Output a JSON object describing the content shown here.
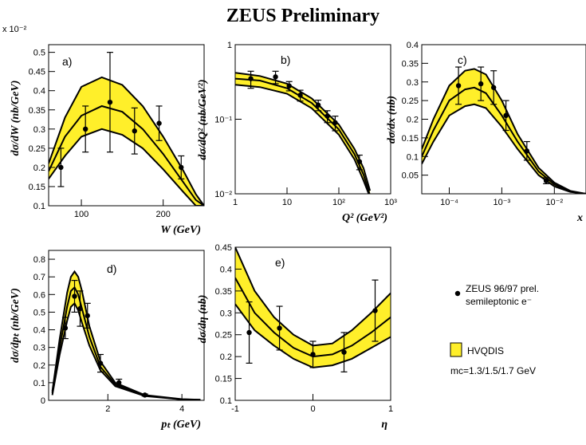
{
  "title": "ZEUS Preliminary",
  "legend": {
    "data_label_1": "ZEUS 96/97 prel.",
    "data_label_2": "semileptonic e⁻",
    "band_label": "HVQDIS",
    "mass_label": "mᴄ=1.3/1.5/1.7 GeV"
  },
  "colors": {
    "band": "#ffef2a",
    "line": "#000000"
  },
  "chart_data": [
    {
      "id": "a",
      "panel_label": "a)",
      "type": "line",
      "xlabel": "W (GeV)",
      "ylabel": "dσ/dW (nb/GeV)",
      "y_exponent_label": "x 10⁻²",
      "xlim": [
        60,
        250
      ],
      "ylim": [
        0.1,
        0.52
      ],
      "xticks": [
        100,
        200
      ],
      "yticks": [
        0.1,
        0.15,
        0.2,
        0.25,
        0.3,
        0.35,
        0.4,
        0.45,
        0.5
      ],
      "ytick_labels": [
        "0.1",
        "0.15",
        "0.2",
        "0.25",
        "0.3",
        "0.35",
        "0.4",
        "0.45",
        "0.5"
      ],
      "data": [
        {
          "x": 75,
          "y": 0.2,
          "err": 0.05
        },
        {
          "x": 105,
          "y": 0.3,
          "err": 0.06
        },
        {
          "x": 135,
          "y": 0.37,
          "err": 0.13
        },
        {
          "x": 165,
          "y": 0.295,
          "err": 0.06
        },
        {
          "x": 195,
          "y": 0.315,
          "err": 0.045
        },
        {
          "x": 222,
          "y": 0.2,
          "err": 0.03
        }
      ],
      "theory_x": [
        60,
        80,
        100,
        125,
        150,
        175,
        200,
        225,
        240,
        250
      ],
      "theory_upper": [
        0.21,
        0.33,
        0.41,
        0.435,
        0.415,
        0.36,
        0.28,
        0.19,
        0.13,
        0.1
      ],
      "theory_central": [
        0.19,
        0.28,
        0.335,
        0.36,
        0.345,
        0.3,
        0.235,
        0.16,
        0.115,
        0.1
      ],
      "theory_lower": [
        0.17,
        0.23,
        0.28,
        0.3,
        0.285,
        0.25,
        0.195,
        0.135,
        0.1,
        0.1
      ]
    },
    {
      "id": "b",
      "panel_label": "b)",
      "type": "line",
      "xlabel": "Q² (GeV²)",
      "ylabel": "dσ/dQ² (nb/GeV²)",
      "xscale": "log",
      "yscale": "log",
      "xlim": [
        1,
        1000
      ],
      "ylim": [
        0.01,
        1
      ],
      "xticks": [
        1,
        10,
        100,
        1000
      ],
      "xtick_labels": [
        "1",
        "10",
        "10²",
        "10³"
      ],
      "yticks": [
        0.01,
        0.1,
        1
      ],
      "ytick_labels": [
        "10⁻²",
        "10⁻¹",
        "1"
      ],
      "data": [
        {
          "x": 2,
          "y": 0.35,
          "err": 0.09
        },
        {
          "x": 6,
          "y": 0.37,
          "err": 0.07
        },
        {
          "x": 11,
          "y": 0.28,
          "err": 0.04
        },
        {
          "x": 18,
          "y": 0.21,
          "err": 0.035
        },
        {
          "x": 40,
          "y": 0.155,
          "err": 0.025
        },
        {
          "x": 60,
          "y": 0.11,
          "err": 0.02
        },
        {
          "x": 85,
          "y": 0.09,
          "err": 0.02
        },
        {
          "x": 250,
          "y": 0.027,
          "err": 0.006
        }
      ],
      "theory_x": [
        1,
        3,
        10,
        30,
        100,
        200,
        300,
        400
      ],
      "theory_upper": [
        0.42,
        0.38,
        0.3,
        0.19,
        0.085,
        0.04,
        0.022,
        0.011
      ],
      "theory_central": [
        0.35,
        0.33,
        0.26,
        0.165,
        0.073,
        0.034,
        0.018,
        0.0095
      ],
      "theory_lower": [
        0.29,
        0.27,
        0.22,
        0.14,
        0.062,
        0.029,
        0.015,
        0.008
      ]
    },
    {
      "id": "c",
      "panel_label": "c)",
      "type": "line",
      "xlabel": "x",
      "ylabel": "dσ/dx (nb)",
      "xscale": "log",
      "xlim": [
        3e-05,
        0.04
      ],
      "ylim": [
        0,
        0.4
      ],
      "xticks": [
        0.0001,
        0.001,
        0.01
      ],
      "xtick_labels": [
        "10⁻⁴",
        "10⁻³",
        "10⁻²"
      ],
      "yticks": [
        0.05,
        0.1,
        0.15,
        0.2,
        0.25,
        0.3,
        0.35,
        0.4
      ],
      "ytick_labels": [
        "0.05",
        "0.1",
        "0.15",
        "0.2",
        "0.25",
        "0.3",
        "0.35",
        "0.4"
      ],
      "data": [
        {
          "x": 0.00015,
          "y": 0.29,
          "err": 0.05
        },
        {
          "x": 0.0004,
          "y": 0.295,
          "err": 0.045
        },
        {
          "x": 0.0007,
          "y": 0.285,
          "err": 0.045
        },
        {
          "x": 0.0012,
          "y": 0.21,
          "err": 0.04
        },
        {
          "x": 0.003,
          "y": 0.115,
          "err": 0.025
        },
        {
          "x": 0.007,
          "y": 0.035,
          "err": 0.008
        }
      ],
      "theory_x": [
        3e-05,
        5e-05,
        0.0001,
        0.0002,
        0.0003,
        0.0005,
        0.001,
        0.002,
        0.005,
        0.01,
        0.02,
        0.04
      ],
      "theory_upper": [
        0.12,
        0.2,
        0.29,
        0.33,
        0.335,
        0.32,
        0.25,
        0.16,
        0.07,
        0.03,
        0.008,
        0.0
      ],
      "theory_central": [
        0.1,
        0.17,
        0.25,
        0.28,
        0.285,
        0.27,
        0.21,
        0.14,
        0.06,
        0.025,
        0.006,
        0.0
      ],
      "theory_lower": [
        0.08,
        0.14,
        0.21,
        0.235,
        0.24,
        0.23,
        0.18,
        0.12,
        0.05,
        0.02,
        0.005,
        0.0
      ]
    },
    {
      "id": "d",
      "panel_label": "d)",
      "type": "line",
      "xlabel": "pₜ (GeV)",
      "ylabel": "dσ/dpₜ (nb/GeV)",
      "xlim": [
        0.4,
        4.6
      ],
      "ylim": [
        0,
        0.85
      ],
      "xticks": [
        2,
        4
      ],
      "yticks": [
        0,
        0.1,
        0.2,
        0.3,
        0.4,
        0.5,
        0.6,
        0.7,
        0.8
      ],
      "ytick_labels": [
        "0",
        "0.1",
        "0.2",
        "0.3",
        "0.4",
        "0.5",
        "0.6",
        "0.7",
        "0.8"
      ],
      "data": [
        {
          "x": 0.85,
          "y": 0.41,
          "err": 0.06
        },
        {
          "x": 1.1,
          "y": 0.59,
          "err": 0.09
        },
        {
          "x": 1.25,
          "y": 0.52,
          "err": 0.1
        },
        {
          "x": 1.45,
          "y": 0.48,
          "err": 0.07
        },
        {
          "x": 1.8,
          "y": 0.21,
          "err": 0.05
        },
        {
          "x": 2.3,
          "y": 0.1,
          "err": 0.02
        },
        {
          "x": 3.0,
          "y": 0.03,
          "err": 0.006
        }
      ],
      "theory_x": [
        0.5,
        0.7,
        0.9,
        1.0,
        1.1,
        1.2,
        1.3,
        1.5,
        1.8,
        2.2,
        3.0,
        4.0,
        4.5
      ],
      "theory_upper": [
        0.05,
        0.35,
        0.61,
        0.7,
        0.73,
        0.7,
        0.62,
        0.42,
        0.22,
        0.1,
        0.03,
        0.007,
        0.003
      ],
      "theory_central": [
        0.04,
        0.3,
        0.53,
        0.62,
        0.64,
        0.6,
        0.52,
        0.36,
        0.19,
        0.09,
        0.027,
        0.006,
        0.003
      ],
      "theory_lower": [
        0.03,
        0.26,
        0.45,
        0.53,
        0.55,
        0.51,
        0.44,
        0.31,
        0.17,
        0.08,
        0.024,
        0.005,
        0.002
      ]
    },
    {
      "id": "e",
      "panel_label": "e)",
      "type": "line",
      "xlabel": "η",
      "ylabel": "dσ/dη (nb)",
      "xlim": [
        -1,
        1
      ],
      "ylim": [
        0.1,
        0.45
      ],
      "xticks": [
        -1,
        0,
        1
      ],
      "yticks": [
        0.1,
        0.15,
        0.2,
        0.25,
        0.3,
        0.35,
        0.4,
        0.45
      ],
      "ytick_labels": [
        "0.1",
        "0.15",
        "0.2",
        "0.25",
        "0.3",
        "0.35",
        "0.4",
        "0.45"
      ],
      "data": [
        {
          "x": -0.82,
          "y": 0.255,
          "err": 0.07
        },
        {
          "x": -0.43,
          "y": 0.265,
          "err": 0.05
        },
        {
          "x": 0.0,
          "y": 0.205,
          "err": 0.03
        },
        {
          "x": 0.4,
          "y": 0.21,
          "err": 0.045
        },
        {
          "x": 0.8,
          "y": 0.305,
          "err": 0.07
        }
      ],
      "theory_x": [
        -1,
        -0.75,
        -0.5,
        -0.25,
        0,
        0.25,
        0.5,
        0.75,
        1
      ],
      "theory_upper": [
        0.45,
        0.35,
        0.29,
        0.25,
        0.225,
        0.23,
        0.26,
        0.3,
        0.345
      ],
      "theory_central": [
        0.38,
        0.3,
        0.255,
        0.22,
        0.2,
        0.205,
        0.225,
        0.255,
        0.29
      ],
      "theory_lower": [
        0.32,
        0.26,
        0.225,
        0.195,
        0.175,
        0.18,
        0.195,
        0.22,
        0.245
      ]
    }
  ]
}
